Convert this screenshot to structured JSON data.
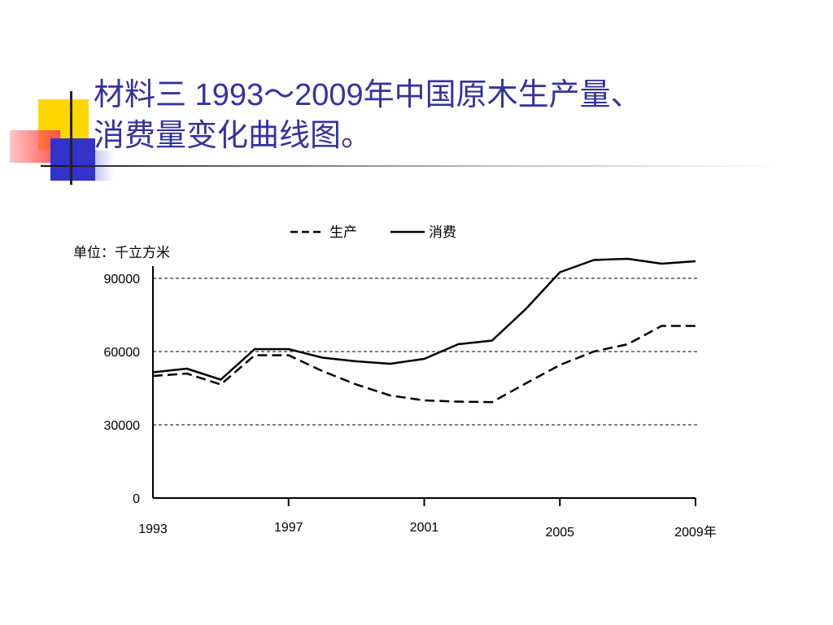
{
  "slide": {
    "title": "材料三  1993～2009年中国原木生产量、\n消费量变化曲线图。"
  },
  "chart_data": {
    "type": "line",
    "title": "",
    "ylabel": "单位：千立方米",
    "xlabel": "",
    "ylim": [
      0,
      95000
    ],
    "xlim": [
      1993,
      2009
    ],
    "yticks": [
      0,
      30000,
      60000,
      90000
    ],
    "ytick_labels": [
      "0",
      "30000",
      "60000",
      "90000"
    ],
    "xticks": [
      1993,
      1997,
      2001,
      2005,
      2009
    ],
    "xtick_labels": [
      "1993",
      "1997",
      "2001",
      "2005",
      "2009年"
    ],
    "grid": "horizontal dashed",
    "legend_position": "top",
    "series": [
      {
        "name": "生产",
        "style": "dashed",
        "color": "#000000",
        "x": [
          1993,
          1994,
          1995,
          1996,
          1997,
          1998,
          1999,
          2000,
          2001,
          2002,
          2003,
          2004,
          2005,
          2006,
          2007,
          2008,
          2009
        ],
        "values": [
          50000,
          51000,
          46500,
          58500,
          58500,
          52000,
          46500,
          42000,
          40000,
          39500,
          39300,
          47000,
          54500,
          60000,
          63000,
          70500,
          70500
        ]
      },
      {
        "name": "消费",
        "style": "solid",
        "color": "#000000",
        "x": [
          1993,
          1994,
          1995,
          1996,
          1997,
          1998,
          1999,
          2000,
          2001,
          2002,
          2003,
          2004,
          2005,
          2006,
          2007,
          2008,
          2009
        ],
        "values": [
          51500,
          53000,
          48500,
          61000,
          61000,
          57500,
          56000,
          55000,
          57000,
          63000,
          64500,
          77500,
          92500,
          97500,
          98000,
          96000,
          97000
        ]
      }
    ]
  }
}
